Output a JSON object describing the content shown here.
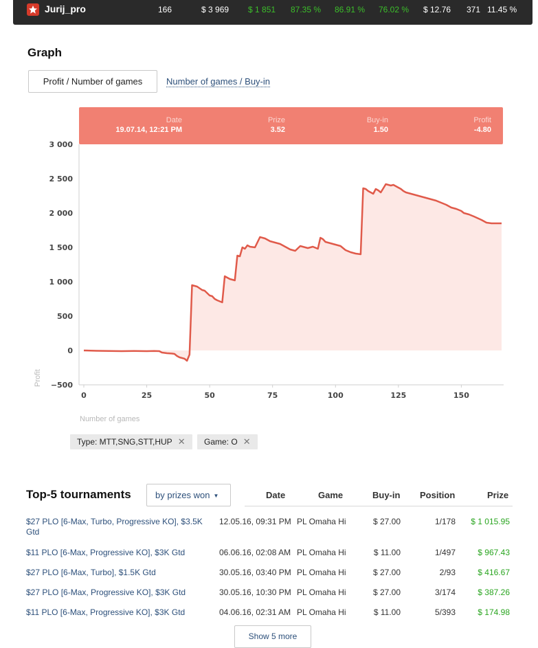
{
  "player": {
    "name": "Jurij_pro",
    "games": "166",
    "buyins_total": "$ 3 969",
    "profit": "$ 1 851",
    "stat1": "87.35 %",
    "stat2": "86.91 %",
    "stat3": "76.02 %",
    "avg": "$ 12.76",
    "count": "371",
    "pct": "11.45 %"
  },
  "graph": {
    "title": "Graph",
    "tab_active": "Profit / Number of games",
    "tab_other": "Number of games / Buy-in"
  },
  "tooltip": {
    "date_label": "Date",
    "date_value": "19.07.14, 12:21 PM",
    "prize_label": "Prize",
    "prize_value": "3.52",
    "buyin_label": "Buy-in",
    "buyin_value": "1.50",
    "profit_label": "Profit",
    "profit_value": "-4.80"
  },
  "chart_data": {
    "type": "area",
    "xlabel": "Number of games",
    "ylabel": "Profit",
    "xlim": [
      0,
      166
    ],
    "ylim": [
      -500,
      3000
    ],
    "xticks": [
      0,
      25,
      50,
      75,
      100,
      125,
      150
    ],
    "yticks": [
      -500,
      0,
      500,
      1000,
      1500,
      2000,
      2500,
      3000
    ],
    "ytick_labels": [
      "−500",
      "0",
      "500",
      "1 000",
      "1 500",
      "2 000",
      "2 500",
      "3 000"
    ],
    "color": "#e05a4a",
    "fill": "#fde8e5",
    "x": [
      0,
      5,
      10,
      15,
      20,
      25,
      28,
      30,
      31,
      33,
      35,
      36,
      37,
      38,
      39,
      40,
      41,
      42,
      43,
      45,
      47,
      48,
      50,
      51,
      52,
      53,
      55,
      56,
      57,
      58,
      60,
      61,
      62,
      63,
      64,
      65,
      66,
      68,
      70,
      72,
      74,
      76,
      78,
      80,
      82,
      84,
      86,
      88,
      89,
      91,
      93,
      94,
      95,
      96,
      98,
      100,
      102,
      104,
      106,
      108,
      110,
      111,
      112,
      113,
      115,
      116,
      117,
      118,
      120,
      121,
      122,
      123,
      124,
      125,
      126,
      127,
      128,
      130,
      132,
      134,
      136,
      138,
      140,
      142,
      144,
      146,
      148,
      150,
      151,
      153,
      155,
      158,
      160,
      162,
      164,
      166
    ],
    "y": [
      0,
      -5,
      -8,
      -10,
      -8,
      -10,
      -7,
      -10,
      -30,
      -40,
      -45,
      -50,
      -80,
      -100,
      -110,
      -120,
      -150,
      -60,
      950,
      930,
      880,
      870,
      800,
      790,
      750,
      730,
      700,
      1080,
      1060,
      1040,
      1020,
      1380,
      1370,
      1500,
      1480,
      1530,
      1510,
      1500,
      1650,
      1630,
      1590,
      1570,
      1550,
      1510,
      1470,
      1450,
      1520,
      1500,
      1490,
      1510,
      1480,
      1640,
      1620,
      1580,
      1560,
      1540,
      1520,
      1460,
      1430,
      1410,
      1400,
      2360,
      2350,
      2320,
      2280,
      2350,
      2330,
      2300,
      2420,
      2410,
      2400,
      2410,
      2390,
      2370,
      2350,
      2320,
      2300,
      2280,
      2260,
      2240,
      2220,
      2200,
      2180,
      2150,
      2120,
      2080,
      2060,
      2030,
      2000,
      1980,
      1950,
      1900,
      1860,
      1850,
      1850,
      1850
    ]
  },
  "filters": [
    {
      "label": "Type: MTT,SNG,STT,HUP",
      "close": "✕"
    },
    {
      "label": "Game: O",
      "close": "✕"
    }
  ],
  "top": {
    "title": "Top-5 tournaments",
    "sort_label": "by prizes won",
    "sort_caret": "▼",
    "headers": {
      "date": "Date",
      "game": "Game",
      "buyin": "Buy-in",
      "position": "Position",
      "prize": "Prize"
    },
    "rows": [
      {
        "name": "$27 PLO [6-Max, Turbo, Progressive KO], $3.5K Gtd",
        "date": "12.05.16, 09:31 PM",
        "game": "PL Omaha Hi",
        "buyin": "$ 27.00",
        "position": "1/178",
        "prize": "$ 1 015.95"
      },
      {
        "name": "$11 PLO [6-Max, Progressive KO], $3K Gtd",
        "date": "06.06.16, 02:08 AM",
        "game": "PL Omaha Hi",
        "buyin": "$ 11.00",
        "position": "1/497",
        "prize": "$ 967.43"
      },
      {
        "name": "$27 PLO [6-Max, Turbo], $1.5K Gtd",
        "date": "30.05.16, 03:40 PM",
        "game": "PL Omaha Hi",
        "buyin": "$ 27.00",
        "position": "2/93",
        "prize": "$ 416.67"
      },
      {
        "name": "$27 PLO [6-Max, Progressive KO], $3K Gtd",
        "date": "30.05.16, 10:30 PM",
        "game": "PL Omaha Hi",
        "buyin": "$ 27.00",
        "position": "3/174",
        "prize": "$ 387.26"
      },
      {
        "name": "$11 PLO [6-Max, Progressive KO], $3K Gtd",
        "date": "04.06.16, 02:31 AM",
        "game": "PL Omaha Hi",
        "buyin": "$ 11.00",
        "position": "5/393",
        "prize": "$ 174.98"
      }
    ],
    "show_more": "Show 5 more"
  }
}
